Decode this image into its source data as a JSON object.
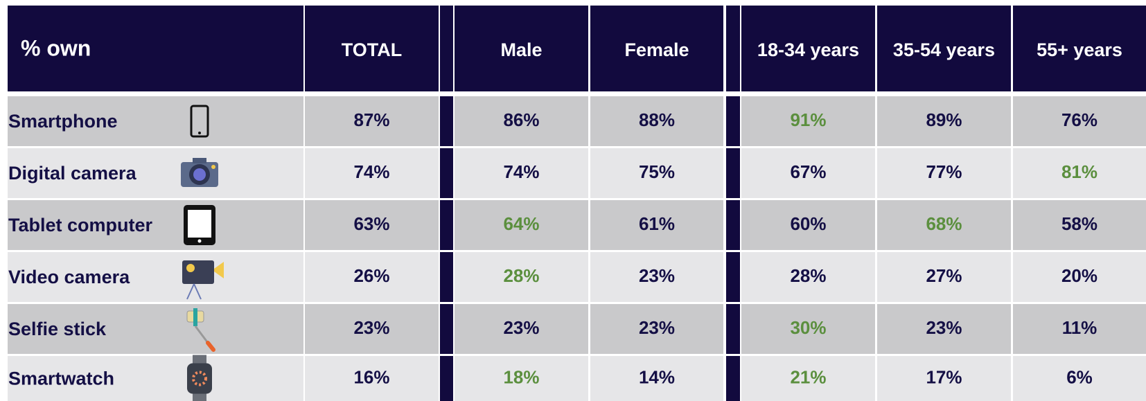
{
  "table": {
    "header": {
      "label": "% own",
      "columns": [
        "TOTAL",
        "Male",
        "Female",
        "18-34 years",
        "35-54 years",
        "55+ years"
      ]
    },
    "text_color": "#140f45",
    "highlight_color": "#5b8f3e",
    "rows": [
      {
        "label": "Smartphone",
        "values": [
          "87%",
          "86%",
          "88%",
          "91%",
          "89%",
          "76%"
        ],
        "highlight": [
          false,
          false,
          false,
          true,
          false,
          false
        ]
      },
      {
        "label": "Digital camera",
        "values": [
          "74%",
          "74%",
          "75%",
          "67%",
          "77%",
          "81%"
        ],
        "highlight": [
          false,
          false,
          false,
          false,
          false,
          true
        ]
      },
      {
        "label": "Tablet computer",
        "values": [
          "63%",
          "64%",
          "61%",
          "60%",
          "68%",
          "58%"
        ],
        "highlight": [
          false,
          true,
          false,
          false,
          true,
          false
        ]
      },
      {
        "label": "Video camera",
        "values": [
          "26%",
          "28%",
          "23%",
          "28%",
          "27%",
          "20%"
        ],
        "highlight": [
          false,
          true,
          false,
          false,
          false,
          false
        ]
      },
      {
        "label": "Selfie stick",
        "values": [
          "23%",
          "23%",
          "23%",
          "30%",
          "23%",
          "11%"
        ],
        "highlight": [
          false,
          false,
          false,
          true,
          false,
          false
        ]
      },
      {
        "label": "Smartwatch",
        "values": [
          "16%",
          "18%",
          "14%",
          "21%",
          "17%",
          "6%"
        ],
        "highlight": [
          false,
          true,
          false,
          true,
          false,
          false
        ]
      }
    ]
  }
}
